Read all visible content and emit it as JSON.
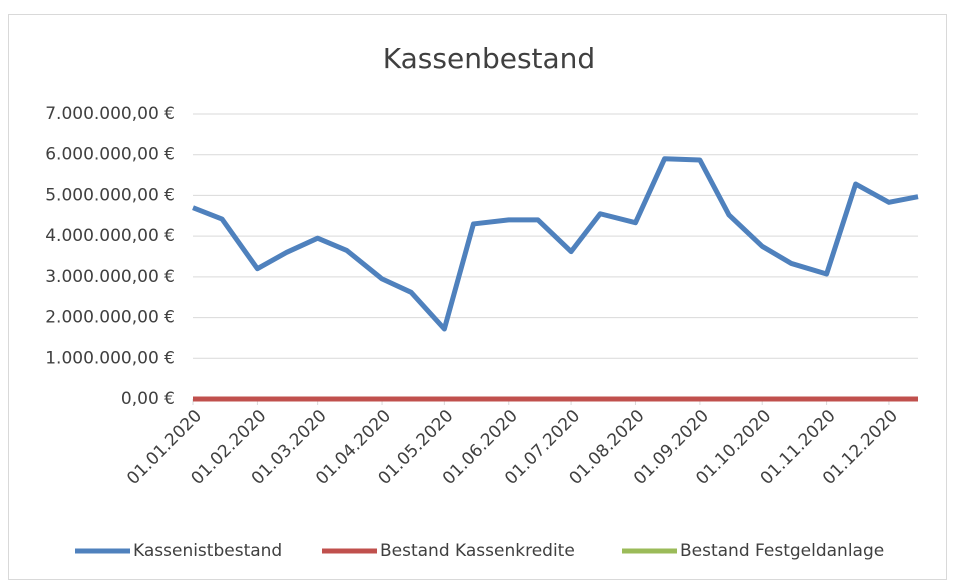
{
  "chart_data": {
    "type": "line",
    "title": "Kassenbestand",
    "x": [
      "01.01.2020",
      "15.01.2020",
      "01.02.2020",
      "15.02.2020",
      "01.03.2020",
      "15.03.2020",
      "01.04.2020",
      "15.04.2020",
      "01.05.2020",
      "15.05.2020",
      "01.06.2020",
      "15.06.2020",
      "01.07.2020",
      "15.07.2020",
      "01.08.2020",
      "15.08.2020",
      "01.09.2020",
      "15.09.2020",
      "01.10.2020",
      "15.10.2020",
      "01.11.2020",
      "15.11.2020",
      "01.12.2020",
      "15.12.2020"
    ],
    "series": [
      {
        "name": "Kassenistbestand",
        "color": "#4f81bd",
        "values": [
          4700000,
          4420000,
          3200000,
          3600000,
          3950000,
          3650000,
          2950000,
          2620000,
          1720000,
          4300000,
          4400000,
          4400000,
          3620000,
          4550000,
          4330000,
          5900000,
          5870000,
          4520000,
          3750000,
          3330000,
          3070000,
          5280000,
          4830000,
          4970000
        ]
      },
      {
        "name": "Bestand Kassenkredite",
        "color": "#c0504d",
        "values": [
          0,
          0,
          0,
          0,
          0,
          0,
          0,
          0,
          0,
          0,
          0,
          0,
          0,
          0,
          0,
          0,
          0,
          0,
          0,
          0,
          0,
          0,
          0,
          0
        ]
      },
      {
        "name": "Bestand Festgeldanlage",
        "color": "#9bbb59",
        "values": [
          0,
          0,
          0,
          0,
          0,
          0,
          0,
          0,
          0,
          0,
          0,
          0,
          0,
          0,
          0,
          0,
          0,
          0,
          0,
          0,
          0,
          0,
          0,
          0
        ]
      }
    ],
    "xlim": [
      "01.01.2020",
      "15.12.2020"
    ],
    "xticks": [
      "01.01.2020",
      "01.02.2020",
      "01.03.2020",
      "01.04.2020",
      "01.05.2020",
      "01.06.2020",
      "01.07.2020",
      "01.08.2020",
      "01.09.2020",
      "01.10.2020",
      "01.11.2020",
      "01.12.2020"
    ],
    "ylim": [
      0,
      7000000
    ],
    "yticks": [
      {
        "value": 0,
        "label": "0,00 €"
      },
      {
        "value": 1000000,
        "label": "1.000.000,00 €"
      },
      {
        "value": 2000000,
        "label": "2.000.000,00 €"
      },
      {
        "value": 3000000,
        "label": "3.000.000,00 €"
      },
      {
        "value": 4000000,
        "label": "4.000.000,00 €"
      },
      {
        "value": 5000000,
        "label": "5.000.000,00 €"
      },
      {
        "value": 6000000,
        "label": "6.000.000,00 €"
      },
      {
        "value": 7000000,
        "label": "7.000.000,00 €"
      }
    ],
    "grid": true,
    "legend": "bottom"
  }
}
